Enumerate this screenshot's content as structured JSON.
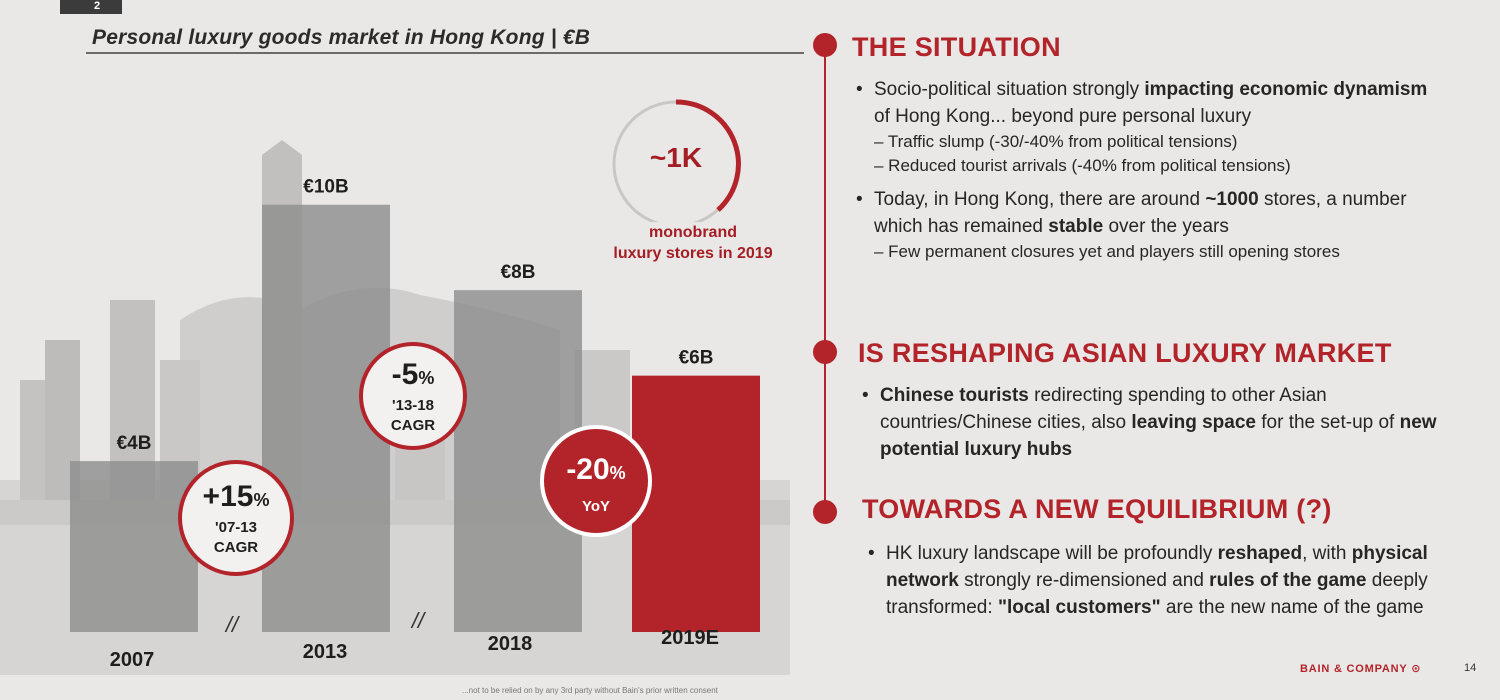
{
  "page_tab": "2",
  "chart_data": {
    "type": "bar",
    "title": "Personal luxury goods market in Hong Kong | €B",
    "categories": [
      "2007",
      "2013",
      "2018",
      "2019E"
    ],
    "values": [
      4,
      10,
      8,
      6
    ],
    "value_labels": [
      "€4B",
      "€10B",
      "€8B",
      "€6B"
    ],
    "ylim": [
      0,
      11
    ],
    "highlight_index": 3,
    "bar_color": "#8f8f8f",
    "highlight_color": "#b3232a",
    "breaks": [
      "//",
      "//"
    ],
    "callouts": [
      {
        "value": "+15",
        "unit": "%",
        "line1": "'07-13",
        "line2": "CAGR"
      },
      {
        "value": "-5",
        "unit": "%",
        "line1": "'13-18",
        "line2": "CAGR"
      },
      {
        "value": "-20",
        "unit": "%",
        "line1": "YoY",
        "line2": ""
      }
    ]
  },
  "stat": {
    "value": "~1K",
    "line1": "monobrand",
    "line2": "luxury stores in 2019"
  },
  "sections": [
    {
      "title": "THE SITUATION",
      "bullets": [
        {
          "parts": [
            {
              "t": "Socio-political situation strongly ",
              "b": false
            },
            {
              "t": "impacting economic dynamism",
              "b": true
            },
            {
              "t": " of Hong Kong... beyond pure personal luxury",
              "b": false
            }
          ],
          "subs": [
            "– Traffic slump (-30/-40% from political tensions)",
            "– Reduced tourist arrivals (-40% from political tensions)"
          ]
        },
        {
          "parts": [
            {
              "t": "Today, in Hong Kong, there are around ",
              "b": false
            },
            {
              "t": "~1000",
              "b": true
            },
            {
              "t": " stores, a number which has remained ",
              "b": false
            },
            {
              "t": "stable",
              "b": true
            },
            {
              "t": " over the years",
              "b": false
            }
          ],
          "subs": [
            "– Few permanent closures yet and players still opening stores"
          ]
        }
      ]
    },
    {
      "title": "IS RESHAPING ASIAN LUXURY MARKET",
      "bullets": [
        {
          "parts": [
            {
              "t": "Chinese tourists",
              "b": true
            },
            {
              "t": " redirecting spending to other Asian countries/Chinese cities, also ",
              "b": false
            },
            {
              "t": "leaving space",
              "b": true
            },
            {
              "t": " for the set-up of ",
              "b": false
            },
            {
              "t": "new potential luxury hubs",
              "b": true
            }
          ],
          "subs": []
        }
      ]
    },
    {
      "title": "TOWARDS A NEW EQUILIBRIUM (?)",
      "bullets": [
        {
          "parts": [
            {
              "t": "HK luxury landscape will be profoundly ",
              "b": false
            },
            {
              "t": "reshaped",
              "b": true
            },
            {
              "t": ", with ",
              "b": false
            },
            {
              "t": "physical network",
              "b": true
            },
            {
              "t": " strongly re-dimensioned and ",
              "b": false
            },
            {
              "t": "rules of the game",
              "b": true
            },
            {
              "t": " deeply transformed: ",
              "b": false
            },
            {
              "t": "\"local customers\"",
              "b": true
            },
            {
              "t": " are the new name of the game",
              "b": false
            }
          ],
          "subs": []
        }
      ]
    }
  ],
  "footer": {
    "brand": "BAIN & COMPANY",
    "page": "14",
    "note": "...not to be relied on by any 3rd party without Bain's prior written consent"
  },
  "colors": {
    "accent": "#b3232a",
    "bar": "#8f8f8f"
  }
}
